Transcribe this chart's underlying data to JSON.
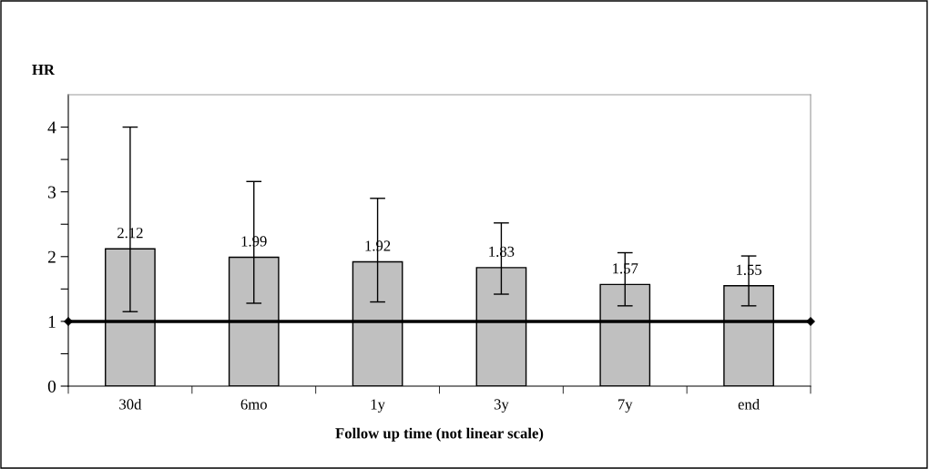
{
  "chart_data": {
    "type": "bar",
    "ylabel": "HR",
    "xlabel": "Follow up time (not linear scale)",
    "categories": [
      "30d",
      "6mo",
      "1y",
      "3y",
      "7y",
      "end"
    ],
    "values": [
      2.12,
      1.99,
      1.92,
      1.83,
      1.57,
      1.55
    ],
    "errors": [
      [
        1.15,
        4.0
      ],
      [
        1.28,
        3.16
      ],
      [
        1.3,
        2.9
      ],
      [
        1.42,
        2.52
      ],
      [
        1.24,
        2.06
      ],
      [
        1.24,
        2.01
      ]
    ],
    "color": "#c0c0c0",
    "data_labels": true,
    "ylim": [
      0,
      4.5
    ],
    "yticks": [
      0,
      {
        "value": 0.5,
        "label": null
      },
      1,
      {
        "value": 1.5,
        "label": null
      },
      2,
      {
        "value": 2.5,
        "label": null
      },
      3,
      {
        "value": 3.5,
        "label": null
      },
      4
    ],
    "ref_lines": [
      {
        "axis": "y",
        "value": 1,
        "color": "#000000",
        "line_style": "solid"
      }
    ],
    "grid": false,
    "legend": false
  }
}
